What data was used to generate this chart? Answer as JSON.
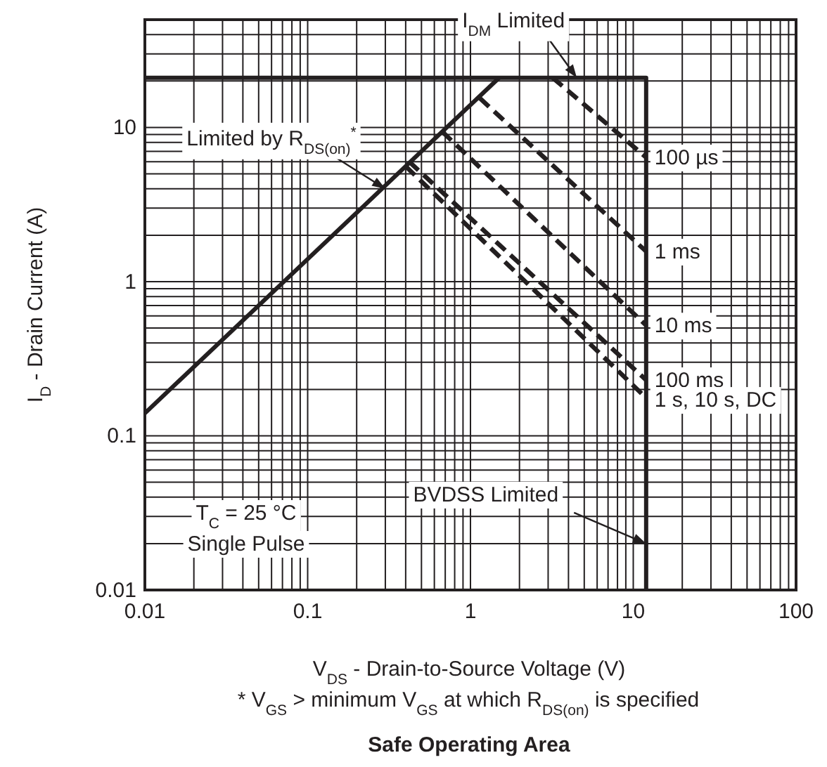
{
  "chart_data": {
    "type": "line",
    "title": "Safe Operating Area",
    "xlabel": "V$_{DS}$ - Drain-to-Source Voltage (V)",
    "ylabel": "I$_{D}$ - Drain Current (A)",
    "log": "xy",
    "grid": true,
    "xlim": [
      0.01,
      100
    ],
    "ylim": [
      0.01,
      50
    ],
    "xticks": [
      0.01,
      0.1,
      1,
      10,
      100
    ],
    "yticks": [
      0.01,
      0.1,
      1,
      10
    ],
    "series": [
      {
        "x": [
          0.01,
          1.5
        ],
        "values": [
          0.14,
          21
        ],
        "color": "#231f20",
        "line_style": "solid"
      },
      {
        "x": [
          0.01,
          12,
          12
        ],
        "values": [
          21,
          21,
          0.01
        ],
        "color": "#231f20",
        "line_style": "solid"
      },
      {
        "name": "100 µs",
        "x": [
          3.2,
          12
        ],
        "values": [
          21,
          6.4
        ],
        "color": "#231f20",
        "line_style": "dashed"
      },
      {
        "name": "1 ms",
        "x": [
          1.14,
          12
        ],
        "values": [
          15.5,
          1.57
        ],
        "color": "#231f20",
        "line_style": "dashed"
      },
      {
        "name": "10 ms",
        "x": [
          0.67,
          12
        ],
        "values": [
          9.4,
          0.52
        ],
        "color": "#231f20",
        "line_style": "dashed"
      },
      {
        "name": "100 ms",
        "x": [
          0.42,
          12
        ],
        "values": [
          6.0,
          0.23
        ],
        "color": "#231f20",
        "line_style": "dashed"
      },
      {
        "name": "1 s, 10 s, DC",
        "x": [
          0.4,
          12
        ],
        "values": [
          5.6,
          0.176
        ],
        "color": "#231f20",
        "line_style": "dashed"
      }
    ],
    "annotations": [
      {
        "text": "I$_{DM}$ Limited",
        "x": 4.5,
        "y": 21
      },
      {
        "text": "Limited by R$_{DS(on)}$$^{*}$",
        "x": 0.3,
        "y": 4
      },
      {
        "text": "BVDSS Limited",
        "x": 12,
        "y": 0.02
      },
      "T$_{C}$ = 25 °C",
      "Single Pulse",
      "* V$_{GS}$ > minimum V$_{GS}$ at which R$_{DS(on)}$ is specified"
    ]
  }
}
